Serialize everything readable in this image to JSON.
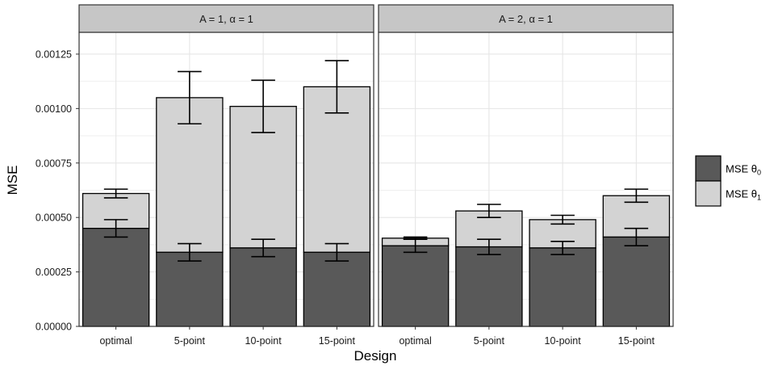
{
  "chart_data": {
    "type": "bar",
    "stacked": true,
    "ylabel": "MSE",
    "xlabel": "Design",
    "ylim": [
      0,
      0.00135
    ],
    "y_ticks": [
      "0.00000",
      "0.00025",
      "0.00050",
      "0.00075",
      "0.00100",
      "0.00125"
    ],
    "y_tick_values": [
      0,
      0.00025,
      0.0005,
      0.00075,
      0.001,
      0.00125
    ],
    "categories": [
      "optimal",
      "5-point",
      "10-point",
      "15-point"
    ],
    "legend": {
      "position": "right",
      "items": [
        {
          "label": "MSE θ",
          "sub": "0",
          "color": "#595959"
        },
        {
          "label": "MSE θ",
          "sub": "1",
          "color": "#d3d3d3"
        }
      ]
    },
    "colors": {
      "theta0": "#595959",
      "theta1": "#d3d3d3",
      "strip": "#c6c6c6",
      "grid": "#e6e6e6"
    },
    "panels": [
      {
        "strip_label": "A = 1, α = 1",
        "theta0": [
          0.00045,
          0.00034,
          0.00036,
          0.00034
        ],
        "theta0_err": [
          [
            0.00041,
            0.00049
          ],
          [
            0.0003,
            0.00038
          ],
          [
            0.00032,
            0.0004
          ],
          [
            0.0003,
            0.00038
          ]
        ],
        "total": [
          0.00061,
          0.00105,
          0.00101,
          0.0011
        ],
        "total_err": [
          [
            0.00059,
            0.00063
          ],
          [
            0.00093,
            0.00117
          ],
          [
            0.00089,
            0.00113
          ],
          [
            0.00098,
            0.00122
          ]
        ]
      },
      {
        "strip_label": "A = 2, α = 1",
        "theta0": [
          0.00037,
          0.000365,
          0.00036,
          0.00041
        ],
        "theta0_err": [
          [
            0.00034,
            0.0004
          ],
          [
            0.00033,
            0.0004
          ],
          [
            0.00033,
            0.00039
          ],
          [
            0.00037,
            0.00045
          ]
        ],
        "total": [
          0.000405,
          0.00053,
          0.00049,
          0.0006
        ],
        "total_err": [
          [
            0.0004,
            0.00041
          ],
          [
            0.0005,
            0.00056
          ],
          [
            0.00047,
            0.00051
          ],
          [
            0.00057,
            0.00063
          ]
        ]
      }
    ]
  }
}
